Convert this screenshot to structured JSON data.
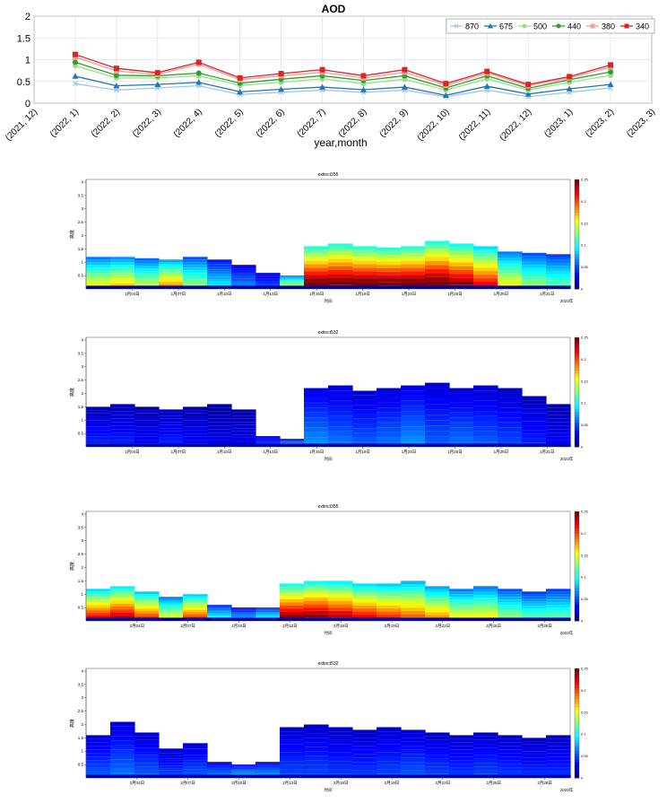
{
  "chart_data": [
    {
      "type": "line",
      "title": "AOD",
      "xlabel": "year,month",
      "ylabel": "",
      "ylim": [
        0,
        2
      ],
      "yticks": [
        "0",
        "0.5",
        "1",
        "1.5",
        "2"
      ],
      "xticks": [
        "(2021, 12)",
        "(2022, 1)",
        "(2022, 2)",
        "(2022, 3)",
        "(2022, 4)",
        "(2022, 5)",
        "(2022, 6)",
        "(2022, 7)",
        "(2022, 8)",
        "(2022, 9)",
        "(2022, 10)",
        "(2022, 11)",
        "(2022, 12)",
        "(2023, 1)",
        "(2023, 2)",
        "(2023, 3)"
      ],
      "categories": [
        "(2022, 1)",
        "(2022, 2)",
        "(2022, 3)",
        "(2022, 4)",
        "(2022, 5)",
        "(2022, 6)",
        "(2022, 7)",
        "(2022, 8)",
        "(2022, 9)",
        "(2022, 10)",
        "(2022, 11)",
        "(2022, 12)",
        "(2023, 1)",
        "(2023, 2)"
      ],
      "grid": true,
      "legend_position": "top-right",
      "series": [
        {
          "name": "870",
          "color": "#9fc5e8",
          "marker": "x",
          "values": [
            0.45,
            0.3,
            0.35,
            0.4,
            0.2,
            0.25,
            0.3,
            0.25,
            0.3,
            0.15,
            0.3,
            0.15,
            0.25,
            0.35
          ]
        },
        {
          "name": "675",
          "color": "#1f77b4",
          "marker": "triangle",
          "values": [
            0.62,
            0.4,
            0.43,
            0.48,
            0.26,
            0.32,
            0.37,
            0.31,
            0.37,
            0.18,
            0.39,
            0.21,
            0.33,
            0.43
          ]
        },
        {
          "name": "500",
          "color": "#98df8a",
          "marker": "circle",
          "values": [
            0.86,
            0.58,
            0.58,
            0.63,
            0.41,
            0.48,
            0.56,
            0.45,
            0.55,
            0.3,
            0.56,
            0.3,
            0.48,
            0.64
          ]
        },
        {
          "name": "440",
          "color": "#2ca02c",
          "marker": "circle",
          "values": [
            0.94,
            0.64,
            0.63,
            0.69,
            0.46,
            0.55,
            0.63,
            0.52,
            0.63,
            0.35,
            0.63,
            0.34,
            0.54,
            0.72
          ]
        },
        {
          "name": "380",
          "color": "#ff9896",
          "marker": "square",
          "values": [
            1.06,
            0.74,
            0.66,
            0.9,
            0.54,
            0.63,
            0.71,
            0.58,
            0.71,
            0.41,
            0.69,
            0.4,
            0.58,
            0.83
          ]
        },
        {
          "name": "340",
          "color": "#d62728",
          "marker": "square",
          "values": [
            1.12,
            0.8,
            0.7,
            0.94,
            0.58,
            0.68,
            0.77,
            0.63,
            0.77,
            0.45,
            0.73,
            0.43,
            0.61,
            0.88
          ]
        }
      ]
    },
    {
      "type": "heatmap",
      "title": "extinct355",
      "ylabel": "高度",
      "xlabel": "时间",
      "x_end_label": "2023年",
      "yticks": [
        "0.5",
        "1",
        "1.5",
        "2",
        "2.5",
        "3",
        "3.5",
        "4"
      ],
      "xticks": [
        "1月04日",
        "1月07日",
        "1月10日",
        "1月13日",
        "1月16日",
        "1月19日",
        "1月22日",
        "1月25日",
        "1月28日",
        "1月31日"
      ],
      "colorbar_ticks": [
        "0",
        "0.05",
        "0.1",
        "0.15",
        "0.2",
        "0.25"
      ],
      "colorbar_range": [
        0,
        0.25
      ],
      "profile_top_km": [
        1.2,
        1.2,
        1.15,
        1.1,
        1.2,
        1.1,
        0.9,
        0.6,
        0.5,
        1.6,
        1.7,
        1.6,
        1.55,
        1.6,
        1.8,
        1.7,
        1.6,
        1.4,
        1.35,
        1.3
      ],
      "profile_intensity": [
        0.6,
        0.65,
        0.55,
        0.7,
        0.5,
        0.35,
        0.25,
        0.2,
        0.6,
        1.0,
        1.0,
        1.0,
        1.0,
        1.0,
        1.0,
        0.95,
        0.85,
        0.6,
        0.5,
        0.45
      ]
    },
    {
      "type": "heatmap",
      "title": "extinct532",
      "ylabel": "高度",
      "xlabel": "时间",
      "x_end_label": "2023年",
      "yticks": [
        "0.5",
        "1",
        "1.5",
        "2",
        "2.5",
        "3",
        "3.5",
        "4"
      ],
      "xticks": [
        "1月04日",
        "1月07日",
        "1月10日",
        "1月13日",
        "1月16日",
        "1月19日",
        "1月22日",
        "1月25日",
        "1月28日",
        "1月31日"
      ],
      "colorbar_ticks": [
        "0",
        "0.05",
        "0.1",
        "0.15",
        "0.2",
        "0.25"
      ],
      "colorbar_range": [
        0,
        0.25
      ],
      "profile_top_km": [
        1.5,
        1.6,
        1.5,
        1.4,
        1.5,
        1.6,
        1.4,
        0.4,
        0.3,
        2.2,
        2.3,
        2.1,
        2.2,
        2.3,
        2.4,
        2.2,
        2.3,
        2.2,
        1.9,
        1.6
      ],
      "profile_intensity": [
        0.15,
        0.15,
        0.12,
        0.15,
        0.12,
        0.1,
        0.1,
        0.2,
        0.3,
        0.25,
        0.22,
        0.2,
        0.22,
        0.25,
        0.2,
        0.22,
        0.2,
        0.18,
        0.15,
        0.12
      ]
    },
    {
      "type": "heatmap",
      "title": "extinct355",
      "ylabel": "高度",
      "xlabel": "时间",
      "x_end_label": "2023年",
      "yticks": [
        "0.5",
        "1",
        "1.5",
        "2",
        "2.5",
        "3",
        "3.5",
        "4"
      ],
      "xticks": [
        "2月04日",
        "2月07日",
        "2月10日",
        "2月13日",
        "2月16日",
        "2月19日",
        "2月22日",
        "2月25日",
        "2月28日"
      ],
      "colorbar_ticks": [
        "0",
        "0.05",
        "0.1",
        "0.15",
        "0.2",
        "0.25"
      ],
      "colorbar_range": [
        0,
        0.25
      ],
      "profile_top_km": [
        1.2,
        1.3,
        1.1,
        0.9,
        1.0,
        0.6,
        0.5,
        0.5,
        1.4,
        1.5,
        1.5,
        1.4,
        1.4,
        1.5,
        1.3,
        1.2,
        1.3,
        1.2,
        1.1,
        1.2
      ],
      "profile_intensity": [
        0.85,
        0.9,
        0.8,
        0.6,
        0.8,
        0.4,
        0.3,
        0.4,
        0.95,
        0.95,
        0.9,
        0.85,
        0.8,
        0.75,
        0.7,
        0.6,
        0.6,
        0.5,
        0.45,
        0.45
      ]
    },
    {
      "type": "heatmap",
      "title": "extinct532",
      "ylabel": "高度",
      "xlabel": "时间",
      "x_end_label": "2023年",
      "yticks": [
        "0.5",
        "1",
        "1.5",
        "2",
        "2.5",
        "3",
        "3.5",
        "4"
      ],
      "xticks": [
        "2月04日",
        "2月07日",
        "2月10日",
        "2月13日",
        "2月16日",
        "2月19日",
        "2月22日",
        "2月25日",
        "2月28日"
      ],
      "colorbar_ticks": [
        "0",
        "0.05",
        "0.1",
        "0.15",
        "0.2",
        "0.25"
      ],
      "colorbar_range": [
        0,
        0.25
      ],
      "profile_top_km": [
        1.6,
        2.1,
        1.7,
        1.1,
        1.3,
        0.6,
        0.5,
        0.6,
        1.9,
        2.0,
        1.9,
        1.8,
        1.9,
        1.8,
        1.7,
        1.6,
        1.7,
        1.6,
        1.5,
        1.6
      ],
      "profile_intensity": [
        0.2,
        0.22,
        0.2,
        0.18,
        0.2,
        0.25,
        0.3,
        0.28,
        0.18,
        0.18,
        0.17,
        0.17,
        0.18,
        0.2,
        0.18,
        0.17,
        0.18,
        0.17,
        0.16,
        0.16
      ]
    }
  ]
}
